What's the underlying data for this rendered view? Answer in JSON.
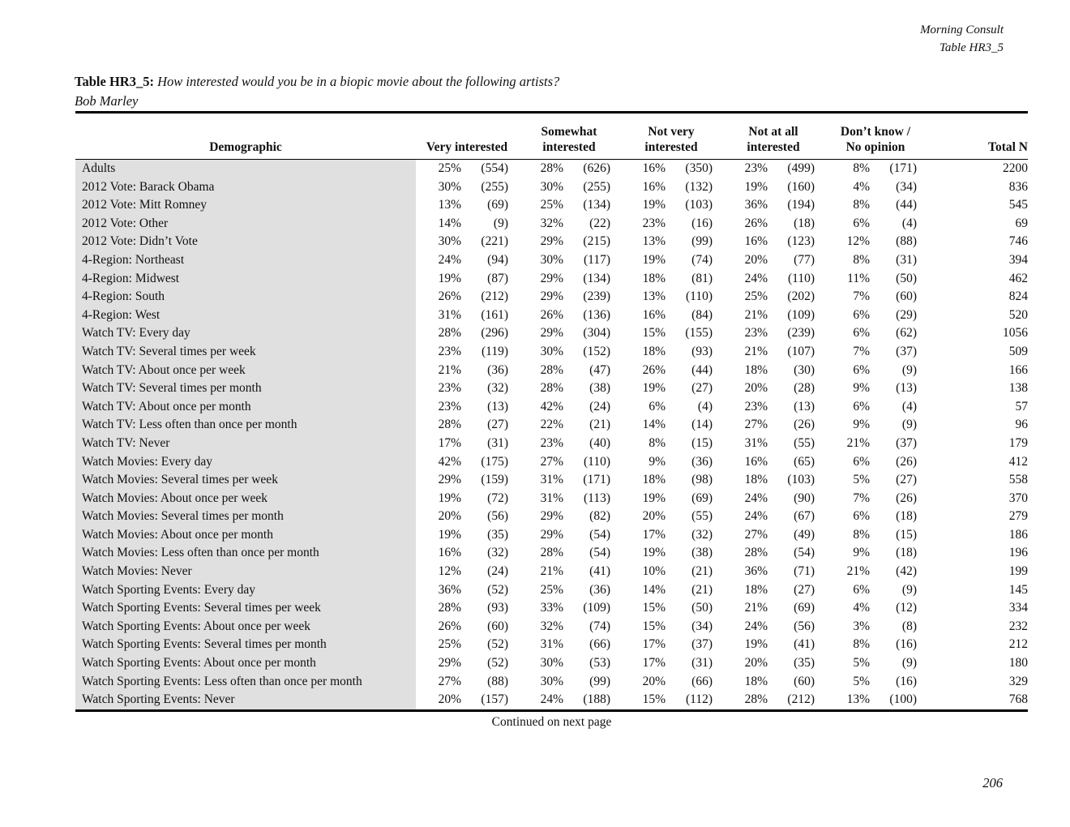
{
  "corner": {
    "source": "Morning Consult",
    "table_ref": "Table HR3_5"
  },
  "title": {
    "label": "Table HR3_5:",
    "question": "How interested would you be in a biopic movie about the following artists?",
    "subject": "Bob Marley"
  },
  "columns": {
    "demographic": "Demographic",
    "categories": [
      [
        "Very interested"
      ],
      [
        "Somewhat",
        "interested"
      ],
      [
        "Not very",
        "interested"
      ],
      [
        "Not at all",
        "interested"
      ],
      [
        "Don’t know /",
        "No opinion"
      ]
    ],
    "total": "Total N"
  },
  "rows": [
    {
      "label": "Adults",
      "cells": [
        "25%",
        "(554)",
        "28%",
        "(626)",
        "16%",
        "(350)",
        "23%",
        "(499)",
        "8%",
        "(171)"
      ],
      "total": "2200"
    },
    {
      "label": "2012 Vote: Barack Obama",
      "cells": [
        "30%",
        "(255)",
        "30%",
        "(255)",
        "16%",
        "(132)",
        "19%",
        "(160)",
        "4%",
        "(34)"
      ],
      "total": "836"
    },
    {
      "label": "2012 Vote: Mitt Romney",
      "cells": [
        "13%",
        "(69)",
        "25%",
        "(134)",
        "19%",
        "(103)",
        "36%",
        "(194)",
        "8%",
        "(44)"
      ],
      "total": "545"
    },
    {
      "label": "2012 Vote: Other",
      "cells": [
        "14%",
        "(9)",
        "32%",
        "(22)",
        "23%",
        "(16)",
        "26%",
        "(18)",
        "6%",
        "(4)"
      ],
      "total": "69"
    },
    {
      "label": "2012 Vote: Didn’t Vote",
      "cells": [
        "30%",
        "(221)",
        "29%",
        "(215)",
        "13%",
        "(99)",
        "16%",
        "(123)",
        "12%",
        "(88)"
      ],
      "total": "746"
    },
    {
      "label": "4-Region: Northeast",
      "cells": [
        "24%",
        "(94)",
        "30%",
        "(117)",
        "19%",
        "(74)",
        "20%",
        "(77)",
        "8%",
        "(31)"
      ],
      "total": "394"
    },
    {
      "label": "4-Region: Midwest",
      "cells": [
        "19%",
        "(87)",
        "29%",
        "(134)",
        "18%",
        "(81)",
        "24%",
        "(110)",
        "11%",
        "(50)"
      ],
      "total": "462"
    },
    {
      "label": "4-Region: South",
      "cells": [
        "26%",
        "(212)",
        "29%",
        "(239)",
        "13%",
        "(110)",
        "25%",
        "(202)",
        "7%",
        "(60)"
      ],
      "total": "824"
    },
    {
      "label": "4-Region: West",
      "cells": [
        "31%",
        "(161)",
        "26%",
        "(136)",
        "16%",
        "(84)",
        "21%",
        "(109)",
        "6%",
        "(29)"
      ],
      "total": "520"
    },
    {
      "label": "Watch TV: Every day",
      "cells": [
        "28%",
        "(296)",
        "29%",
        "(304)",
        "15%",
        "(155)",
        "23%",
        "(239)",
        "6%",
        "(62)"
      ],
      "total": "1056"
    },
    {
      "label": "Watch TV: Several times per week",
      "cells": [
        "23%",
        "(119)",
        "30%",
        "(152)",
        "18%",
        "(93)",
        "21%",
        "(107)",
        "7%",
        "(37)"
      ],
      "total": "509"
    },
    {
      "label": "Watch TV: About once per week",
      "cells": [
        "21%",
        "(36)",
        "28%",
        "(47)",
        "26%",
        "(44)",
        "18%",
        "(30)",
        "6%",
        "(9)"
      ],
      "total": "166"
    },
    {
      "label": "Watch TV: Several times per month",
      "cells": [
        "23%",
        "(32)",
        "28%",
        "(38)",
        "19%",
        "(27)",
        "20%",
        "(28)",
        "9%",
        "(13)"
      ],
      "total": "138"
    },
    {
      "label": "Watch TV: About once per month",
      "cells": [
        "23%",
        "(13)",
        "42%",
        "(24)",
        "6%",
        "(4)",
        "23%",
        "(13)",
        "6%",
        "(4)"
      ],
      "total": "57"
    },
    {
      "label": "Watch TV: Less often than once per month",
      "cells": [
        "28%",
        "(27)",
        "22%",
        "(21)",
        "14%",
        "(14)",
        "27%",
        "(26)",
        "9%",
        "(9)"
      ],
      "total": "96"
    },
    {
      "label": "Watch TV: Never",
      "cells": [
        "17%",
        "(31)",
        "23%",
        "(40)",
        "8%",
        "(15)",
        "31%",
        "(55)",
        "21%",
        "(37)"
      ],
      "total": "179"
    },
    {
      "label": "Watch Movies: Every day",
      "cells": [
        "42%",
        "(175)",
        "27%",
        "(110)",
        "9%",
        "(36)",
        "16%",
        "(65)",
        "6%",
        "(26)"
      ],
      "total": "412"
    },
    {
      "label": "Watch Movies: Several times per week",
      "cells": [
        "29%",
        "(159)",
        "31%",
        "(171)",
        "18%",
        "(98)",
        "18%",
        "(103)",
        "5%",
        "(27)"
      ],
      "total": "558"
    },
    {
      "label": "Watch Movies: About once per week",
      "cells": [
        "19%",
        "(72)",
        "31%",
        "(113)",
        "19%",
        "(69)",
        "24%",
        "(90)",
        "7%",
        "(26)"
      ],
      "total": "370"
    },
    {
      "label": "Watch Movies: Several times per month",
      "cells": [
        "20%",
        "(56)",
        "29%",
        "(82)",
        "20%",
        "(55)",
        "24%",
        "(67)",
        "6%",
        "(18)"
      ],
      "total": "279"
    },
    {
      "label": "Watch Movies: About once per month",
      "cells": [
        "19%",
        "(35)",
        "29%",
        "(54)",
        "17%",
        "(32)",
        "27%",
        "(49)",
        "8%",
        "(15)"
      ],
      "total": "186"
    },
    {
      "label": "Watch Movies: Less often than once per month",
      "cells": [
        "16%",
        "(32)",
        "28%",
        "(54)",
        "19%",
        "(38)",
        "28%",
        "(54)",
        "9%",
        "(18)"
      ],
      "total": "196"
    },
    {
      "label": "Watch Movies: Never",
      "cells": [
        "12%",
        "(24)",
        "21%",
        "(41)",
        "10%",
        "(21)",
        "36%",
        "(71)",
        "21%",
        "(42)"
      ],
      "total": "199"
    },
    {
      "label": "Watch Sporting Events: Every day",
      "cells": [
        "36%",
        "(52)",
        "25%",
        "(36)",
        "14%",
        "(21)",
        "18%",
        "(27)",
        "6%",
        "(9)"
      ],
      "total": "145"
    },
    {
      "label": "Watch Sporting Events: Several times per week",
      "cells": [
        "28%",
        "(93)",
        "33%",
        "(109)",
        "15%",
        "(50)",
        "21%",
        "(69)",
        "4%",
        "(12)"
      ],
      "total": "334"
    },
    {
      "label": "Watch Sporting Events: About once per week",
      "cells": [
        "26%",
        "(60)",
        "32%",
        "(74)",
        "15%",
        "(34)",
        "24%",
        "(56)",
        "3%",
        "(8)"
      ],
      "total": "232"
    },
    {
      "label": "Watch Sporting Events: Several times per month",
      "cells": [
        "25%",
        "(52)",
        "31%",
        "(66)",
        "17%",
        "(37)",
        "19%",
        "(41)",
        "8%",
        "(16)"
      ],
      "total": "212"
    },
    {
      "label": "Watch Sporting Events: About once per month",
      "cells": [
        "29%",
        "(52)",
        "30%",
        "(53)",
        "17%",
        "(31)",
        "20%",
        "(35)",
        "5%",
        "(9)"
      ],
      "total": "180"
    },
    {
      "label": "Watch Sporting Events: Less often than once per month",
      "cells": [
        "27%",
        "(88)",
        "30%",
        "(99)",
        "20%",
        "(66)",
        "18%",
        "(60)",
        "5%",
        "(16)"
      ],
      "total": "329"
    },
    {
      "label": "Watch Sporting Events: Never",
      "cells": [
        "20%",
        "(157)",
        "24%",
        "(188)",
        "15%",
        "(112)",
        "28%",
        "(212)",
        "13%",
        "(100)"
      ],
      "total": "768"
    }
  ],
  "footer": {
    "continued": "Continued on next page",
    "page_number": "206"
  }
}
